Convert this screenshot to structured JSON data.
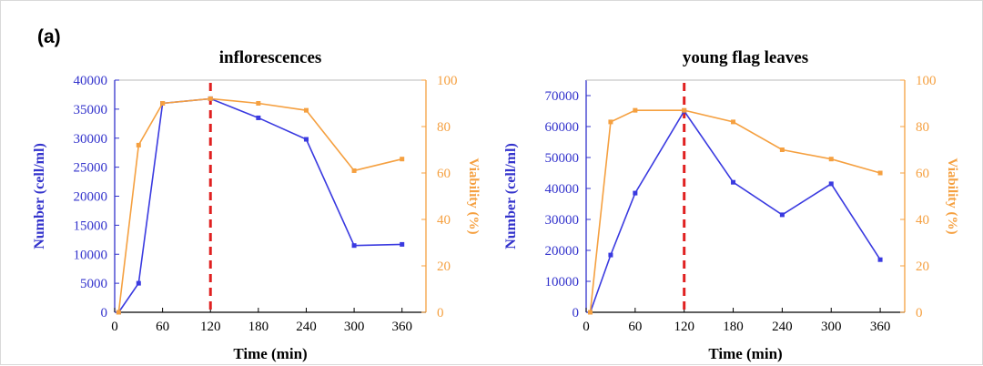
{
  "panel_label": "(a)",
  "colors": {
    "left_axis": "#3333cc",
    "right_axis": "#f5a040",
    "series_left": "#3a3ae0",
    "series_right": "#f5a040",
    "marker_line": "#e02020",
    "axis": "#000000"
  },
  "chart_data": [
    {
      "type": "line",
      "title": "inflorescences",
      "xlabel": "Time (min)",
      "ylabel": "Number (cell/ml)",
      "y2label": "Viability (%)",
      "xlim": [
        0,
        390
      ],
      "xticks": [
        0,
        60,
        120,
        180,
        240,
        300,
        360
      ],
      "ylim": [
        0,
        40000
      ],
      "yticks": [
        0,
        5000,
        10000,
        15000,
        20000,
        25000,
        30000,
        35000,
        40000
      ],
      "y2lim": [
        0,
        100
      ],
      "y2ticks": [
        0,
        20,
        40,
        60,
        80,
        100
      ],
      "vline_x": 120,
      "series": [
        {
          "axis": "left",
          "x": [
            5,
            30,
            60,
            120,
            180,
            240,
            300,
            360
          ],
          "y": [
            0,
            5000,
            36000,
            36800,
            33500,
            29800,
            11500,
            11700
          ]
        },
        {
          "axis": "right",
          "x": [
            5,
            30,
            60,
            120,
            180,
            240,
            300,
            360
          ],
          "y": [
            0,
            72,
            90,
            92,
            90,
            87,
            61,
            66
          ]
        }
      ]
    },
    {
      "type": "line",
      "title": "young flag leaves",
      "xlabel": "Time (min)",
      "ylabel": "Number (cell/ml)",
      "y2label": "Viability  (%)",
      "xlim": [
        0,
        390
      ],
      "xticks": [
        0,
        60,
        120,
        180,
        240,
        300,
        360
      ],
      "ylim": [
        0,
        75000
      ],
      "yticks": [
        0,
        10000,
        20000,
        30000,
        40000,
        50000,
        60000,
        70000
      ],
      "y2lim": [
        0,
        100
      ],
      "y2ticks": [
        0,
        20,
        40,
        60,
        80,
        100
      ],
      "vline_x": 120,
      "series": [
        {
          "axis": "left",
          "x": [
            5,
            30,
            60,
            120,
            180,
            240,
            300,
            360
          ],
          "y": [
            0,
            18500,
            38500,
            65000,
            42000,
            31500,
            41500,
            17000
          ]
        },
        {
          "axis": "right",
          "x": [
            5,
            30,
            60,
            120,
            180,
            240,
            300,
            360
          ],
          "y": [
            0,
            82,
            87,
            87,
            82,
            70,
            66,
            60
          ]
        }
      ]
    }
  ]
}
